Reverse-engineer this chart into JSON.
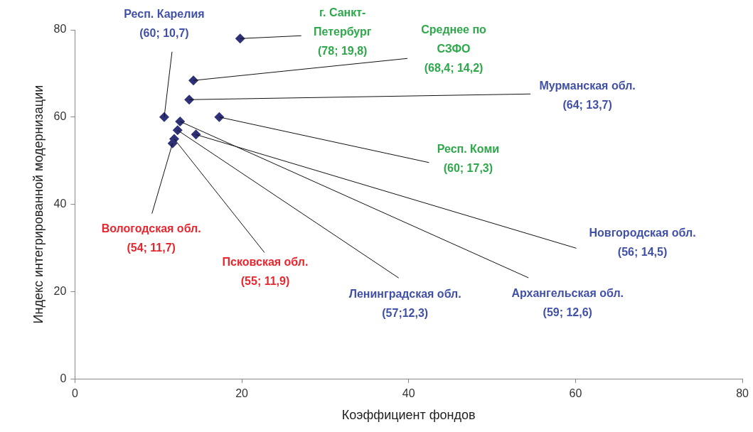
{
  "chart_data": {
    "type": "scatter",
    "xlabel": "Коэффициент фондов",
    "ylabel": "Индекс интегрированной модернизации",
    "x": [
      10.7,
      19.8,
      14.2,
      13.7,
      17.3,
      14.5,
      12.3,
      12.6,
      11.7,
      11.9
    ],
    "values": [
      60,
      78,
      68.4,
      64,
      60,
      56,
      57,
      59,
      54,
      55
    ],
    "color": "#2e3177",
    "marker": "diamond",
    "grid": false,
    "legend": false,
    "xlim": [
      0,
      80
    ],
    "xticks": [
      0,
      20,
      40,
      60,
      80
    ],
    "ylim": [
      0,
      80
    ],
    "yticks": [
      0,
      20,
      40,
      60,
      80
    ],
    "annotations": [
      {
        "text": "Респ. Карелия\n(60; 10,7)",
        "x": 10.7,
        "y": 60
      },
      {
        "text": "г. Санкт-\nПетербург\n(78; 19,8)",
        "x": 19.8,
        "y": 78
      },
      {
        "text": "Среднее по\nСЗФО\n(68,4; 14,2)",
        "x": 14.2,
        "y": 68.4
      },
      {
        "text": "Мурманская обл.\n(64; 13,7)",
        "x": 13.7,
        "y": 64
      },
      {
        "text": "Респ. Коми\n(60; 17,3)",
        "x": 17.3,
        "y": 60
      },
      {
        "text": "Новгородская обл.\n(56; 14,5)",
        "x": 14.5,
        "y": 56
      },
      {
        "text": "Ленинградская обл.\n(57;12,3)",
        "x": 12.3,
        "y": 57
      },
      {
        "text": "Архангельская обл.\n(59; 12,6)",
        "x": 12.6,
        "y": 59
      },
      {
        "text": "Вологодская обл.\n(54; 11,7)",
        "x": 11.7,
        "y": 54
      },
      {
        "text": "Псковская обл.\n(55; 11,9)",
        "x": 11.9,
        "y": 55
      }
    ]
  }
}
